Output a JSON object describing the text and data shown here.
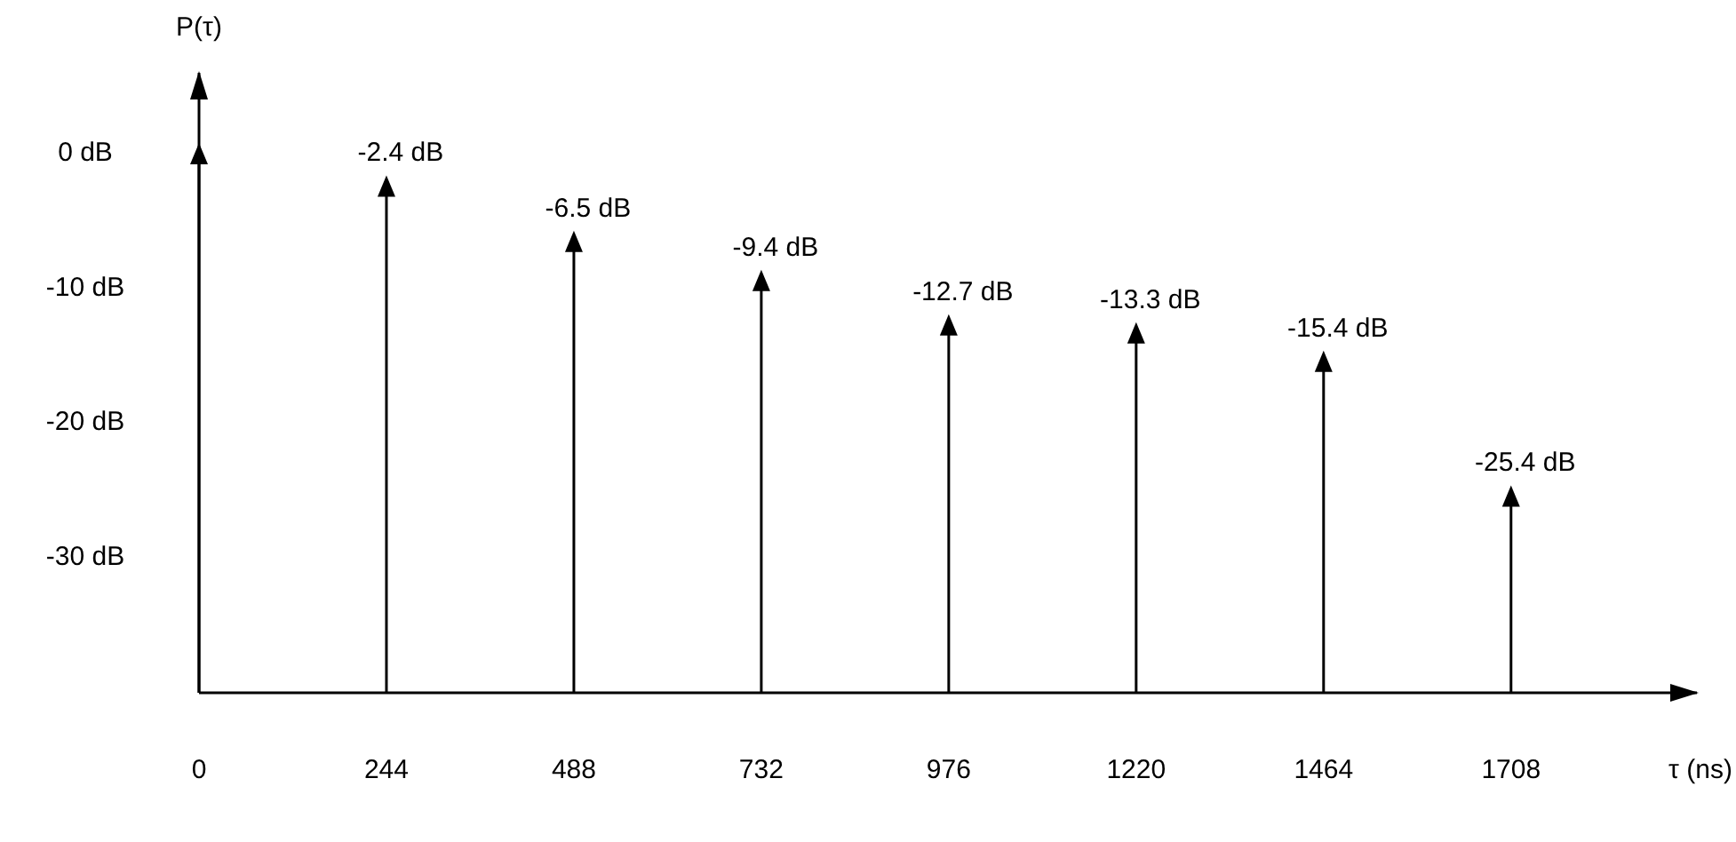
{
  "chart_data": {
    "type": "lollipop",
    "xlabel": "τ (ns)",
    "ylabel": "P(τ)",
    "x": [
      0,
      244,
      488,
      732,
      976,
      1220,
      1464,
      1708
    ],
    "values": [
      0,
      -2.4,
      -6.5,
      -9.4,
      -12.7,
      -13.3,
      -15.4,
      -25.4
    ],
    "value_labels": [
      null,
      "-2.4 dB",
      "-6.5 dB",
      "-9.4 dB",
      "-12.7 dB",
      "-13.3 dB",
      "-15.4 dB",
      "-25.4 dB"
    ],
    "color": "#000000",
    "marker": "triangle",
    "xlim": [
      0,
      1950
    ],
    "xticks": [
      0,
      244,
      488,
      732,
      976,
      1220,
      1464,
      1708
    ],
    "ylim": [
      -40,
      6
    ],
    "yticks": [
      {
        "value": 0,
        "label": "0 dB"
      },
      {
        "value": -10,
        "label": "-10 dB"
      },
      {
        "value": -20,
        "label": "-20 dB"
      },
      {
        "value": -30,
        "label": "-30 dB"
      }
    ]
  }
}
